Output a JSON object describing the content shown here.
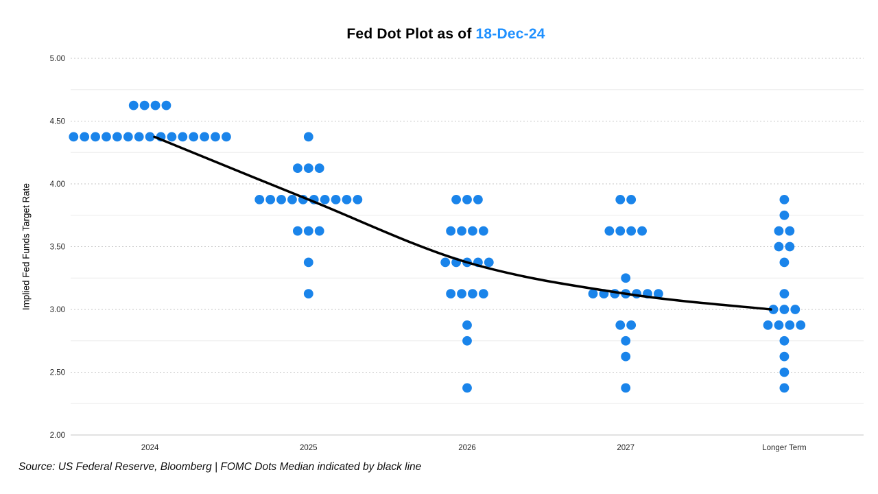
{
  "chart_data": {
    "type": "scatter",
    "title": {
      "prefix": "Fed Dot Plot as of ",
      "date": "18-Dec-24"
    },
    "ylabel": "Implied Fed Funds Target Rate",
    "footer": "Source: US Federal Reserve, Bloomberg | FOMC Dots Median indicated by black line",
    "ylim": [
      2.0,
      5.0
    ],
    "y_tick_labels": [
      "5.00",
      "4.50",
      "4.00",
      "3.50",
      "3.00",
      "2.50",
      "2.00"
    ],
    "y_tick_values": [
      5.0,
      4.5,
      4.0,
      3.5,
      3.0,
      2.5,
      2.0
    ],
    "y_minor_values": [
      4.75,
      4.25,
      3.75,
      3.25,
      2.75,
      2.25
    ],
    "grid": "horizontal",
    "legend": "none",
    "categories": [
      "2024",
      "2025",
      "2026",
      "2027",
      "Longer Term"
    ],
    "dots": [
      {
        "category": "2024",
        "levels": [
          {
            "rate": 4.625,
            "count": 4
          },
          {
            "rate": 4.375,
            "count": 15
          }
        ]
      },
      {
        "category": "2025",
        "levels": [
          {
            "rate": 4.375,
            "count": 1
          },
          {
            "rate": 4.125,
            "count": 3
          },
          {
            "rate": 3.875,
            "count": 10
          },
          {
            "rate": 3.625,
            "count": 3
          },
          {
            "rate": 3.375,
            "count": 1
          },
          {
            "rate": 3.125,
            "count": 1
          }
        ]
      },
      {
        "category": "2026",
        "levels": [
          {
            "rate": 3.875,
            "count": 3
          },
          {
            "rate": 3.625,
            "count": 4
          },
          {
            "rate": 3.375,
            "count": 5
          },
          {
            "rate": 3.125,
            "count": 4
          },
          {
            "rate": 2.875,
            "count": 1
          },
          {
            "rate": 2.75,
            "count": 1
          },
          {
            "rate": 2.375,
            "count": 1
          }
        ]
      },
      {
        "category": "2027",
        "levels": [
          {
            "rate": 3.875,
            "count": 2
          },
          {
            "rate": 3.625,
            "count": 4
          },
          {
            "rate": 3.25,
            "count": 1
          },
          {
            "rate": 3.125,
            "count": 7
          },
          {
            "rate": 2.875,
            "count": 2
          },
          {
            "rate": 2.75,
            "count": 1
          },
          {
            "rate": 2.625,
            "count": 1
          },
          {
            "rate": 2.375,
            "count": 1
          }
        ]
      },
      {
        "category": "Longer Term",
        "levels": [
          {
            "rate": 3.875,
            "count": 1
          },
          {
            "rate": 3.75,
            "count": 1
          },
          {
            "rate": 3.625,
            "count": 2
          },
          {
            "rate": 3.5,
            "count": 2
          },
          {
            "rate": 3.375,
            "count": 1
          },
          {
            "rate": 3.125,
            "count": 1
          },
          {
            "rate": 3.0,
            "count": 3
          },
          {
            "rate": 2.875,
            "count": 4
          },
          {
            "rate": 2.75,
            "count": 1
          },
          {
            "rate": 2.625,
            "count": 1
          },
          {
            "rate": 2.5,
            "count": 1
          },
          {
            "rate": 2.375,
            "count": 1
          }
        ]
      }
    ],
    "median_line": {
      "label": "FOMC Dots Median",
      "values": [
        4.375,
        3.875,
        3.375,
        3.125,
        3.0
      ]
    },
    "colors": {
      "dot": "#1a84ea",
      "title_accent": "#1e90ff",
      "median_line": "#000000",
      "major_grid": "#c6c6c6",
      "minor_grid": "#ebebeb"
    }
  }
}
